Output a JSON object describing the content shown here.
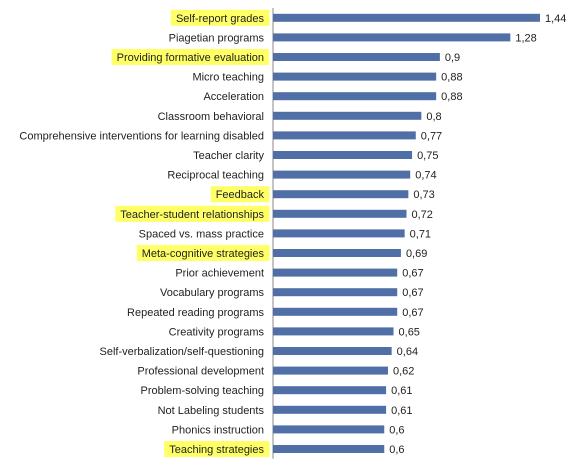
{
  "chart_data": {
    "type": "bar",
    "orientation": "horizontal",
    "title": "",
    "xlabel": "",
    "ylabel": "",
    "xlim": [
      0,
      1.5
    ],
    "grid": false,
    "legend": "none",
    "decimal_separator": ",",
    "categories": [
      "Self-report grades",
      "Piagetian programs",
      "Providing formative evaluation",
      "Micro teaching",
      "Acceleration",
      "Classroom behavioral",
      "Comprehensive interventions for learning disabled",
      "Teacher clarity",
      "Reciprocal teaching",
      "Feedback",
      "Teacher-student relationships",
      "Spaced vs. mass practice",
      "Meta-cognitive strategies",
      "Prior achievement",
      "Vocabulary programs",
      "Repeated reading programs",
      "Creativity programs",
      "Self-verbalization/self-questioning",
      "Professional development",
      "Problem-solving teaching",
      "Not Labeling students",
      "Phonics instruction",
      "Teaching strategies"
    ],
    "values": [
      1.44,
      1.28,
      0.9,
      0.88,
      0.88,
      0.8,
      0.77,
      0.75,
      0.74,
      0.73,
      0.72,
      0.71,
      0.69,
      0.67,
      0.67,
      0.67,
      0.65,
      0.64,
      0.62,
      0.61,
      0.61,
      0.6,
      0.6
    ],
    "value_labels": [
      "1,44",
      "1,28",
      "0,9",
      "0,88",
      "0,88",
      "0,8",
      "0,77",
      "0,75",
      "0,74",
      "0,73",
      "0,72",
      "0,71",
      "0,69",
      "0,67",
      "0,67",
      "0,67",
      "0,65",
      "0,64",
      "0,62",
      "0,61",
      "0,61",
      "0,6",
      "0,6"
    ],
    "highlighted": [
      "Self-report grades",
      "Providing formative evaluation",
      "Feedback",
      "Teacher-student relationships",
      "Meta-cognitive strategies",
      "Teaching strategies"
    ]
  },
  "colors": {
    "bar": "#4f6fa6",
    "highlight": "#ffff66",
    "axis": "#888888",
    "text": "#222222"
  }
}
